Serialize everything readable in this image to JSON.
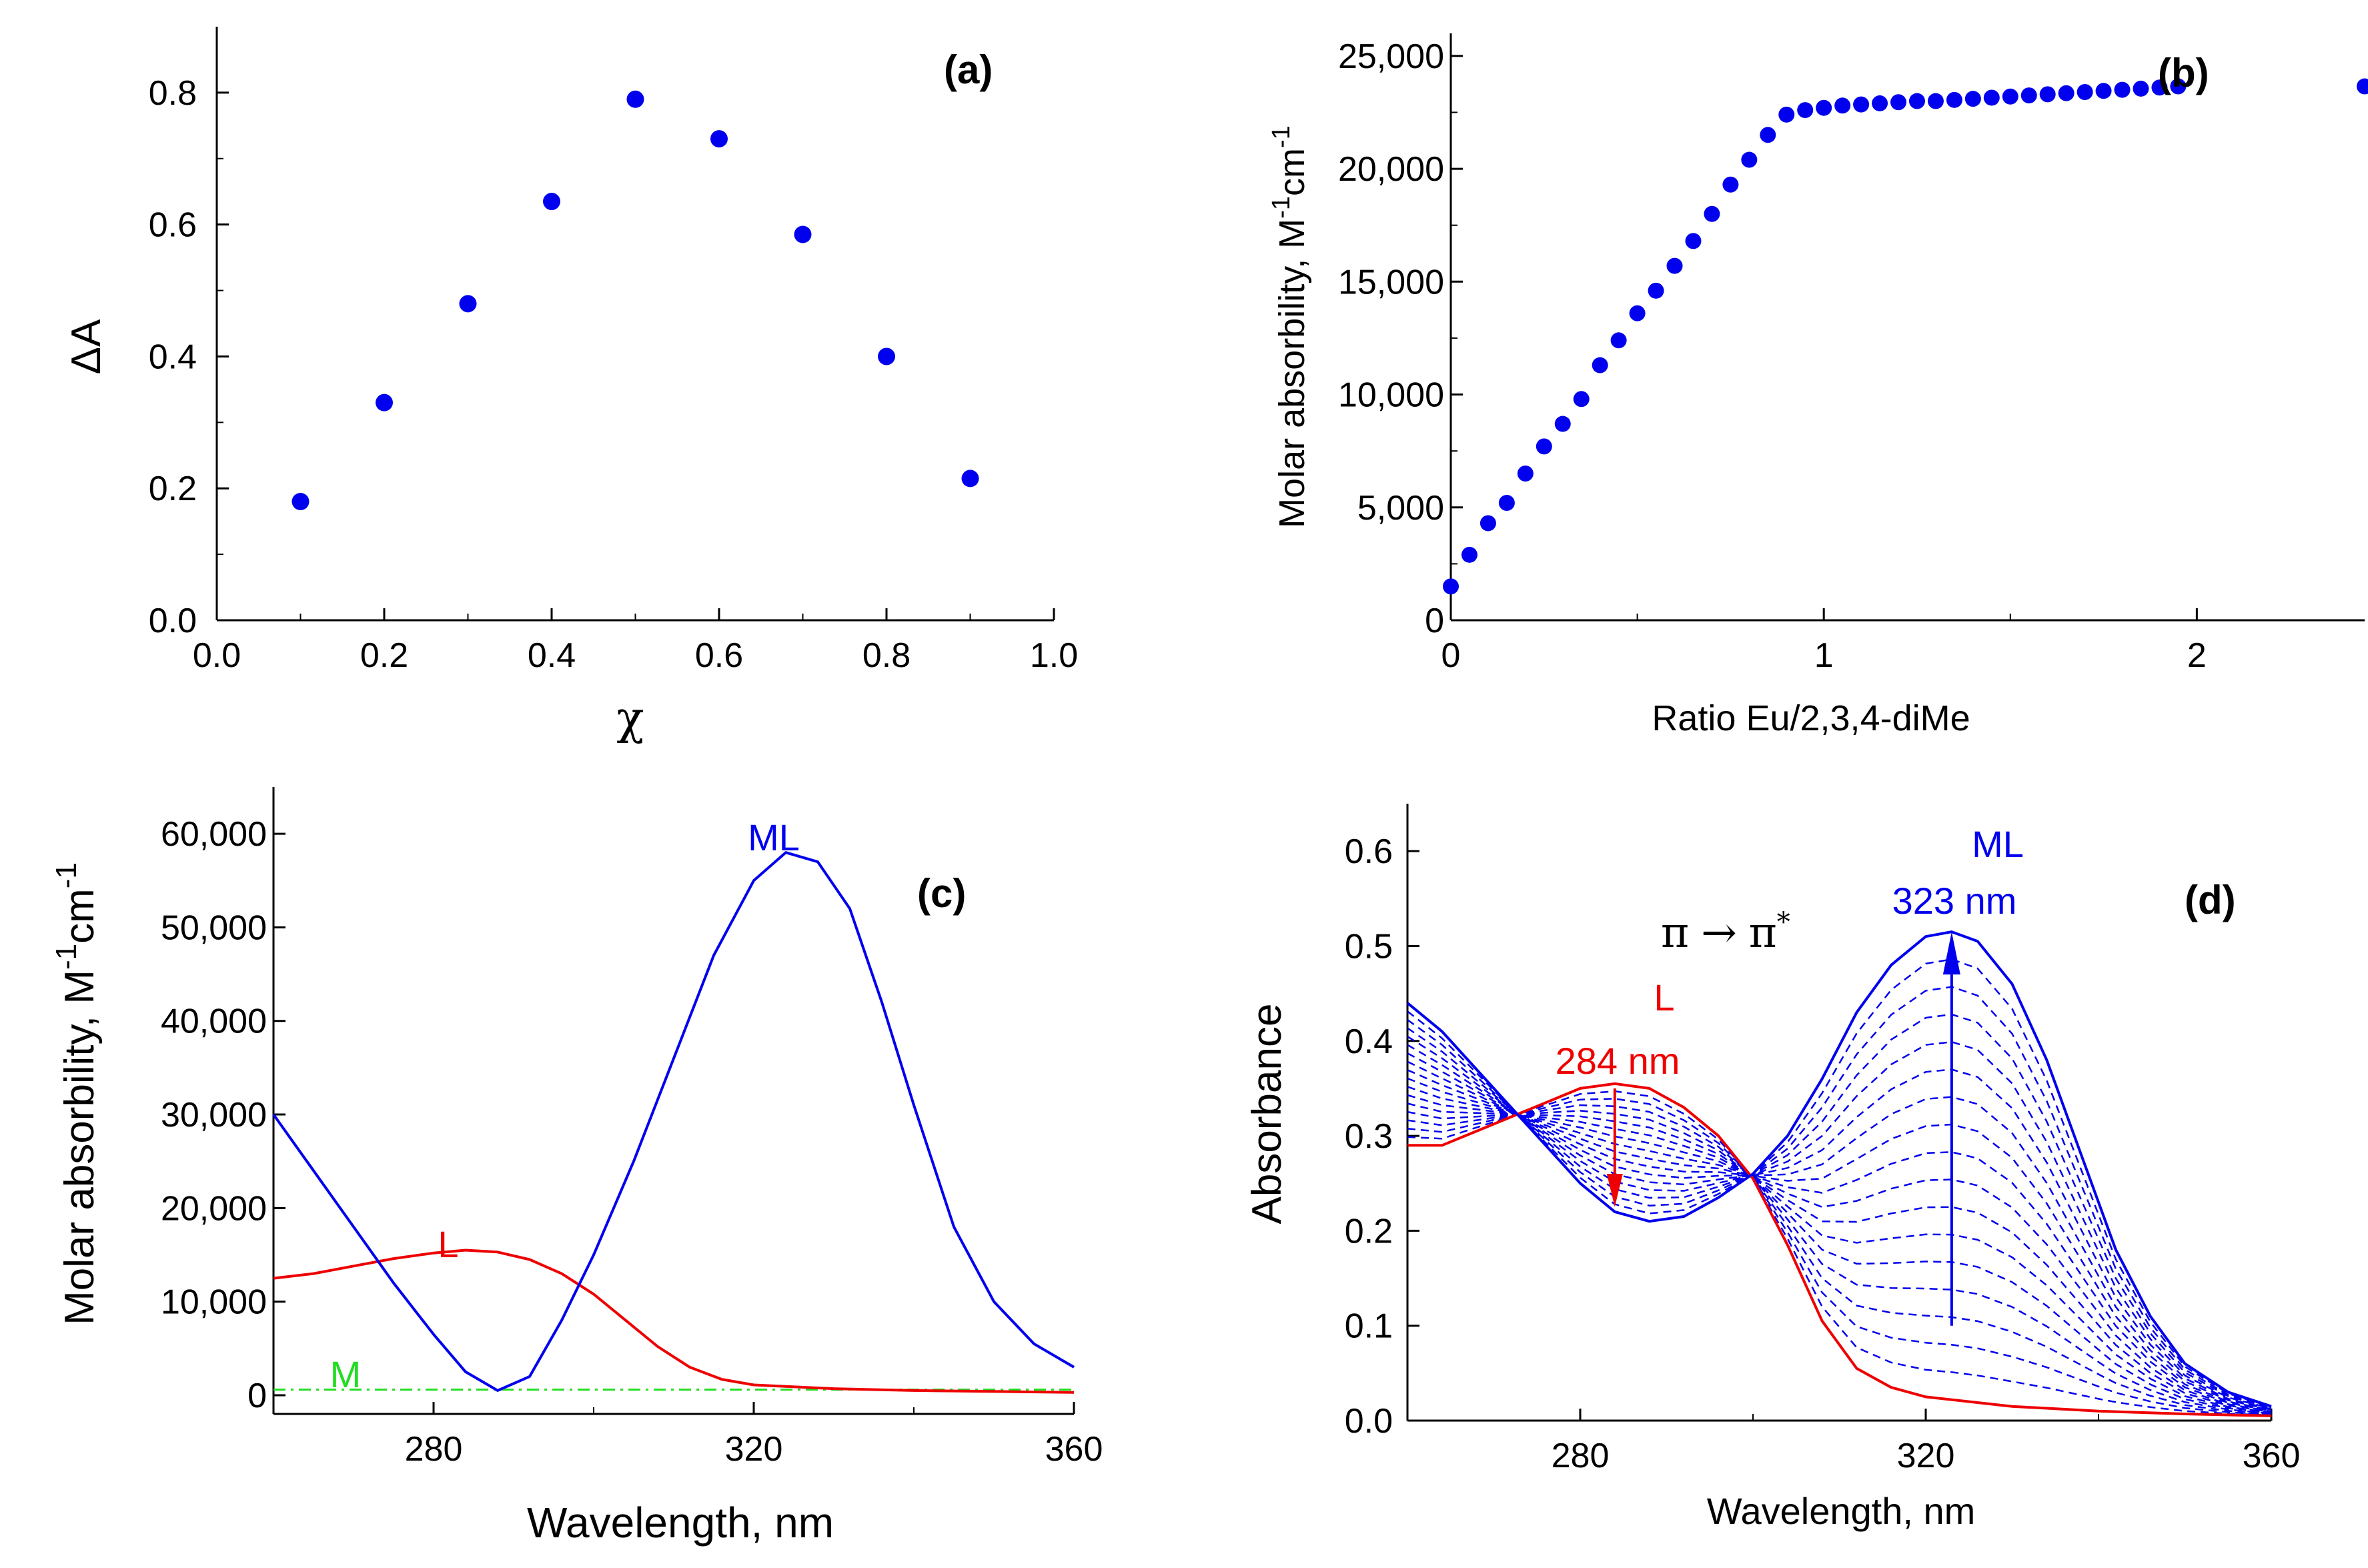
{
  "chart_data": [
    {
      "id": "a",
      "type": "scatter",
      "panel_label": "(a)",
      "xlabel": "χ",
      "ylabel": "ΔA",
      "xlim": [
        0,
        1
      ],
      "ylim": [
        0,
        0.9
      ],
      "x_ticks": [
        "0.0",
        "0.2",
        "0.4",
        "0.6",
        "0.8",
        "1.0"
      ],
      "y_ticks": [
        "0.0",
        "0.2",
        "0.4",
        "0.6",
        "0.8"
      ],
      "color": "#0000ee",
      "series": [
        {
          "name": "ΔA",
          "x": [
            0.1,
            0.2,
            0.3,
            0.4,
            0.5,
            0.6,
            0.7,
            0.8,
            0.9
          ],
          "y": [
            0.18,
            0.33,
            0.48,
            0.635,
            0.79,
            0.73,
            0.585,
            0.4,
            0.215
          ]
        }
      ]
    },
    {
      "id": "b",
      "type": "scatter",
      "panel_label": "(b)",
      "xlabel": "Ratio  Eu/2,3,4-diMe",
      "ylabel": "Molar absorbility, M",
      "ylabel_sup1": "-1",
      "ylabel_mid": "cm",
      "ylabel_sup2": "-1",
      "xlim": [
        0,
        2.45
      ],
      "ylim": [
        0,
        26000
      ],
      "x_ticks": [
        "0",
        "1",
        "2"
      ],
      "y_ticks": [
        "0",
        "5,000",
        "10,000",
        "15,000",
        "20,000",
        "25,000"
      ],
      "color": "#0000ee",
      "series": [
        {
          "name": "Molar absorbility",
          "x": [
            0,
            0.05,
            0.1,
            0.15,
            0.2,
            0.25,
            0.3,
            0.35,
            0.4,
            0.45,
            0.5,
            0.55,
            0.6,
            0.65,
            0.7,
            0.75,
            0.8,
            0.85,
            0.9,
            0.95,
            1.0,
            1.05,
            1.1,
            1.15,
            1.2,
            1.25,
            1.3,
            1.35,
            1.4,
            1.45,
            1.5,
            1.55,
            1.6,
            1.65,
            1.7,
            1.75,
            1.8,
            1.85,
            1.9,
            1.95,
            2.45
          ],
          "y": [
            1500,
            2900,
            4300,
            5200,
            6500,
            7700,
            8700,
            9800,
            11300,
            12400,
            13600,
            14600,
            15700,
            16800,
            18000,
            19300,
            20400,
            21500,
            22400,
            22600,
            22700,
            22800,
            22850,
            22900,
            22950,
            23000,
            23000,
            23050,
            23100,
            23150,
            23200,
            23250,
            23300,
            23350,
            23400,
            23450,
            23500,
            23550,
            23600,
            23650,
            23650
          ]
        }
      ]
    },
    {
      "id": "c",
      "type": "line",
      "panel_label": "(c)",
      "xlabel": "Wavelength, nm",
      "ylabel": "Molar absorbility, M",
      "ylabel_sup1": "-1",
      "ylabel_mid": "cm",
      "ylabel_sup2": "-1",
      "xlim": [
        260,
        360
      ],
      "ylim": [
        -2000,
        65000
      ],
      "x_ticks": [
        "280",
        "320",
        "360"
      ],
      "y_ticks": [
        "0",
        "10,000",
        "20,000",
        "30,000",
        "40,000",
        "50,000",
        "60,000"
      ],
      "series": [
        {
          "name": "ML",
          "color": "#0000ee",
          "x": [
            260,
            265,
            270,
            275,
            280,
            284,
            288,
            292,
            296,
            300,
            305,
            310,
            315,
            320,
            324,
            328,
            332,
            336,
            340,
            345,
            350,
            355,
            360
          ],
          "y": [
            30000,
            24000,
            18000,
            12000,
            6500,
            2500,
            500,
            2000,
            8000,
            15000,
            25000,
            36000,
            47000,
            55000,
            58000,
            57000,
            52000,
            42000,
            31000,
            18000,
            10000,
            5500,
            3000
          ]
        },
        {
          "name": "L",
          "color": "#ee0000",
          "x": [
            260,
            265,
            270,
            275,
            280,
            284,
            288,
            292,
            296,
            300,
            304,
            308,
            312,
            316,
            320,
            330,
            340,
            350,
            360
          ],
          "y": [
            12500,
            13000,
            13800,
            14600,
            15200,
            15500,
            15300,
            14500,
            13000,
            10800,
            8000,
            5200,
            3000,
            1700,
            1100,
            700,
            500,
            400,
            300
          ]
        },
        {
          "name": "M",
          "color": "#22dd22",
          "x": [
            260,
            360
          ],
          "y": [
            600,
            600
          ]
        }
      ]
    },
    {
      "id": "d",
      "type": "line",
      "panel_label": "(d)",
      "xlabel": "Wavelength, nm",
      "ylabel": "Absorbance",
      "xlim": [
        260,
        360
      ],
      "ylim": [
        0,
        0.65
      ],
      "x_ticks": [
        "280",
        "320",
        "360"
      ],
      "y_ticks": [
        "0.0",
        "0.1",
        "0.2",
        "0.3",
        "0.4",
        "0.5",
        "0.6"
      ],
      "annotations": {
        "L": "L",
        "L_peak": "284 nm",
        "ML": "ML",
        "ML_peak": "323 nm",
        "transition_a": "π",
        "transition_arrow": "→",
        "transition_b": "π",
        "transition_star": "*"
      },
      "series": [
        {
          "name": "L",
          "color": "#ee0000",
          "x": [
            260,
            264,
            268,
            272,
            276,
            280,
            284,
            288,
            292,
            296,
            300,
            304,
            308,
            312,
            316,
            320,
            330,
            340,
            350,
            360
          ],
          "y": [
            0.29,
            0.29,
            0.305,
            0.32,
            0.335,
            0.35,
            0.355,
            0.35,
            0.33,
            0.3,
            0.255,
            0.185,
            0.105,
            0.055,
            0.035,
            0.025,
            0.015,
            0.01,
            0.007,
            0.005
          ]
        },
        {
          "name": "ML",
          "color": "#0000ee",
          "x": [
            260,
            264,
            268,
            272,
            276,
            280,
            284,
            288,
            292,
            296,
            300,
            304,
            308,
            312,
            316,
            320,
            323,
            326,
            330,
            334,
            338,
            342,
            346,
            350,
            355,
            360
          ],
          "y": [
            0.44,
            0.41,
            0.37,
            0.33,
            0.29,
            0.25,
            0.22,
            0.21,
            0.215,
            0.235,
            0.26,
            0.3,
            0.36,
            0.43,
            0.48,
            0.51,
            0.515,
            0.505,
            0.46,
            0.38,
            0.28,
            0.18,
            0.11,
            0.06,
            0.03,
            0.015
          ]
        }
      ],
      "titration_curves": 16
    }
  ]
}
